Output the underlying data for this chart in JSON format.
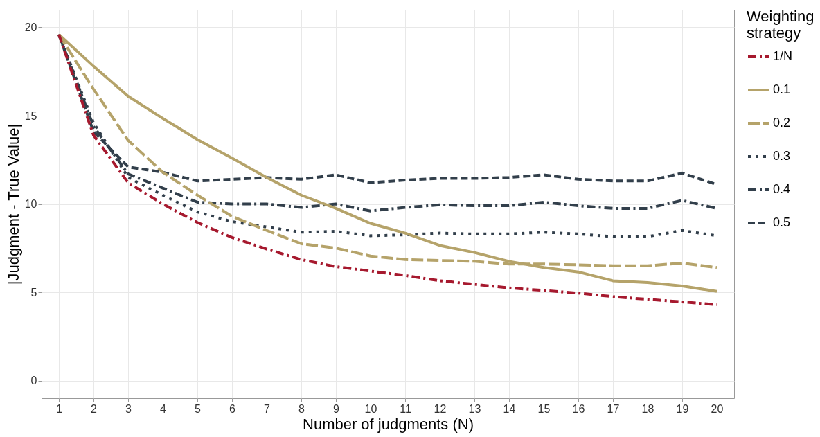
{
  "chart_data": {
    "type": "line",
    "xlabel": "Number of judgments (N)",
    "ylabel": "|Judgment - True Value|",
    "legend_title": "Weighting strategy",
    "x": [
      1,
      2,
      3,
      4,
      5,
      6,
      7,
      8,
      9,
      10,
      11,
      12,
      13,
      14,
      15,
      16,
      17,
      18,
      19,
      20
    ],
    "xlim": [
      0.5,
      20.5
    ],
    "xticks": [
      1,
      2,
      3,
      4,
      5,
      6,
      7,
      8,
      9,
      10,
      11,
      12,
      13,
      14,
      15,
      16,
      17,
      18,
      19,
      20
    ],
    "ylim": [
      -1,
      21
    ],
    "yticks": [
      0,
      5,
      10,
      15,
      20
    ],
    "grid": true,
    "legend": "right",
    "marker": "none",
    "series": [
      {
        "name": "1/N",
        "color": "#a6192e",
        "line_style": "dashdot",
        "values": [
          19.6,
          13.9,
          11.2,
          10.0,
          8.95,
          8.1,
          7.45,
          6.85,
          6.45,
          6.2,
          5.95,
          5.65,
          5.45,
          5.25,
          5.1,
          4.95,
          4.75,
          4.6,
          4.45,
          4.3
        ]
      },
      {
        "name": "0.1",
        "color": "#b5a36a",
        "line_style": "solid",
        "values": [
          19.6,
          17.8,
          16.1,
          14.85,
          13.65,
          12.6,
          11.5,
          10.5,
          9.75,
          8.9,
          8.35,
          7.65,
          7.25,
          6.75,
          6.4,
          6.15,
          5.65,
          5.55,
          5.35,
          5.05
        ]
      },
      {
        "name": "0.2",
        "color": "#b5a36a",
        "line_style": "longdash",
        "values": [
          19.6,
          16.5,
          13.6,
          11.8,
          10.5,
          9.3,
          8.5,
          7.75,
          7.5,
          7.05,
          6.85,
          6.8,
          6.75,
          6.6,
          6.6,
          6.55,
          6.5,
          6.5,
          6.65,
          6.4
        ]
      },
      {
        "name": "0.3",
        "color": "#323f4b",
        "line_style": "dotted",
        "values": [
          19.6,
          14.6,
          11.5,
          10.5,
          9.55,
          9.0,
          8.7,
          8.4,
          8.45,
          8.2,
          8.25,
          8.35,
          8.3,
          8.3,
          8.4,
          8.3,
          8.15,
          8.15,
          8.5,
          8.2
        ]
      },
      {
        "name": "0.4",
        "color": "#323f4b",
        "line_style": "dashdot",
        "values": [
          19.6,
          14.4,
          11.7,
          10.9,
          10.1,
          10.0,
          10.0,
          9.8,
          10.0,
          9.6,
          9.8,
          9.95,
          9.9,
          9.9,
          10.1,
          9.9,
          9.75,
          9.75,
          10.2,
          9.75
        ]
      },
      {
        "name": "0.5",
        "color": "#323f4b",
        "line_style": "dashed",
        "values": [
          19.6,
          14.1,
          12.1,
          11.8,
          11.3,
          11.4,
          11.5,
          11.4,
          11.65,
          11.2,
          11.35,
          11.45,
          11.45,
          11.5,
          11.65,
          11.4,
          11.3,
          11.3,
          11.75,
          11.1
        ]
      }
    ]
  }
}
